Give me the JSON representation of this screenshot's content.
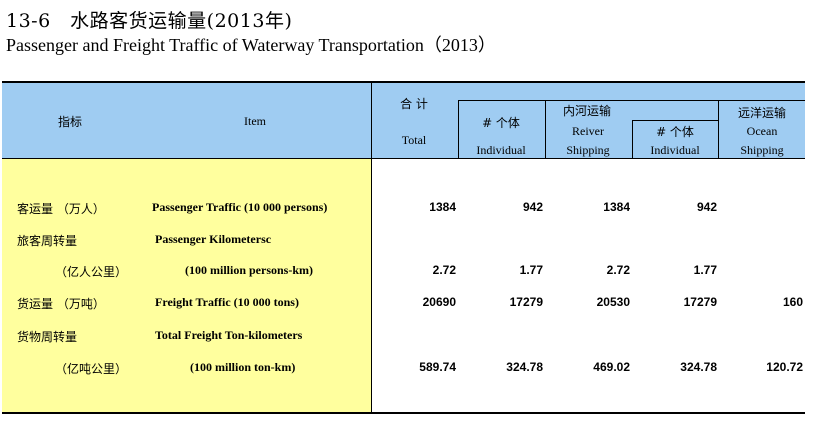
{
  "title": {
    "chinese": "13-6　水路客货运输量(2013年)",
    "english": "Passenger and Freight Traffic of Waterway Transportation（2013）"
  },
  "header": {
    "indicator_cn": "指标",
    "item_en": "Item",
    "total_cn": "合 计",
    "total_en": "Total",
    "individual1_cn": "# 个体",
    "individual1_en": "Individual",
    "inland_cn": "内河运输",
    "river_en": "Reiver",
    "river_en2": "Shipping",
    "individual2_cn": "# 个体",
    "individual2_en": "Individual",
    "ocean_cn": "远洋运输",
    "ocean_en": "Ocean",
    "ocean_en2": "Shipping"
  },
  "rows": [
    {
      "cn": "客运量 （万人）",
      "en": "Passenger Traffic (10 000 persons)",
      "total": "1384",
      "ind1": "942",
      "river": "1384",
      "ind2": "942",
      "ocean": ""
    },
    {
      "cn": "旅客周转量",
      "en": "Passenger Kilometersc",
      "total": "",
      "ind1": "",
      "river": "",
      "ind2": "",
      "ocean": ""
    },
    {
      "cn": "（亿人公里）",
      "en": "(100 million persons-km)",
      "total": "2.72",
      "ind1": "1.77",
      "river": "2.72",
      "ind2": "1.77",
      "ocean": ""
    },
    {
      "cn": "货运量 （万吨）",
      "en": "Freight Traffic  (10 000 tons)",
      "total": "20690",
      "ind1": "17279",
      "river": "20530",
      "ind2": "17279",
      "ocean": "160"
    },
    {
      "cn": "货物周转量",
      "en": "Total Freight Ton-kilometers",
      "total": "",
      "ind1": "",
      "river": "",
      "ind2": "",
      "ocean": ""
    },
    {
      "cn": "（亿吨公里）",
      "en": "(100  million ton-km)",
      "total": "589.74",
      "ind1": "324.78",
      "river": "469.02",
      "ind2": "324.78",
      "ocean": "120.72"
    }
  ]
}
